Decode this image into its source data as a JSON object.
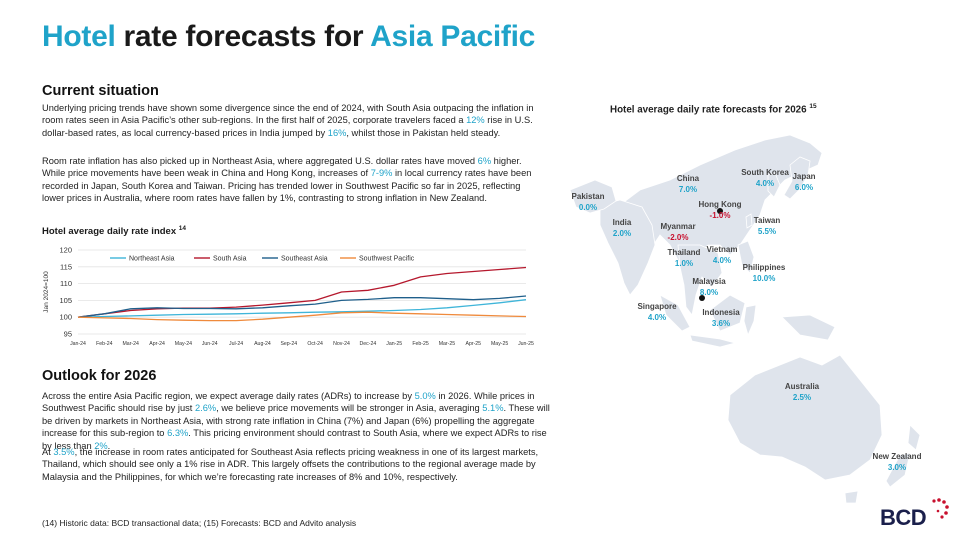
{
  "title": {
    "part1": "Hotel",
    "part2": " rate forecasts for ",
    "part3": "Asia Pacific"
  },
  "current": {
    "heading": "Current situation",
    "p1": [
      {
        "t": "Underlying pricing trends have shown some divergence since the end of 2024, with South Asia outpacing the inflation in room rates seen in Asia Pacific’s other sub-regions. In the first half of 2025, corporate travelers faced a "
      },
      {
        "t": "12%",
        "a": true
      },
      {
        "t": " rise in U.S. dollar-based rates, as local currency-based prices in India jumped by "
      },
      {
        "t": "16%",
        "a": true
      },
      {
        "t": ", whilst those in Pakistan held steady."
      }
    ],
    "p2": [
      {
        "t": "Room rate inflation has also picked up in Northeast Asia, where aggregated U.S. dollar rates have moved "
      },
      {
        "t": "6%",
        "a": true
      },
      {
        "t": " higher. While price movements have been weak in China and Hong Kong, increases of "
      },
      {
        "t": "7-9%",
        "a": true
      },
      {
        "t": " in local currency rates have been recorded in Japan, South Korea and Taiwan. Pricing has trended lower in Southwest Pacific so far in 2025, reflecting lower prices in Australia, where room rates have fallen by 1%, contrasting to strong inflation in New Zealand."
      }
    ]
  },
  "chart_title": {
    "text": "Hotel average daily rate index",
    "sup": "14"
  },
  "chart_data": {
    "type": "line",
    "title": "Hotel average daily rate index",
    "ylabel": "Jan 2024=100",
    "ylim": [
      95,
      120
    ],
    "yticks": [
      95,
      100,
      105,
      110,
      115,
      120
    ],
    "grid": true,
    "legend": "top",
    "categories": [
      "Jan-24",
      "Feb-24",
      "Mar-24",
      "Apr-24",
      "May-24",
      "Jun-24",
      "Jul-24",
      "Aug-24",
      "Sep-24",
      "Oct-24",
      "Nov-24",
      "Dec-24",
      "Jan-25",
      "Feb-25",
      "Mar-25",
      "Apr-25",
      "May-25",
      "Jun-25"
    ],
    "series": [
      {
        "name": "Northeast Asia",
        "color": "#3fb5d9",
        "values": [
          100,
          100.2,
          100.4,
          100.6,
          100.8,
          100.9,
          101.0,
          101.2,
          101.3,
          101.5,
          101.6,
          101.8,
          102.0,
          102.3,
          102.8,
          103.5,
          104.3,
          105.2
        ]
      },
      {
        "name": "South Asia",
        "color": "#b5182d",
        "values": [
          100,
          101.0,
          102.0,
          102.5,
          102.7,
          102.7,
          103.0,
          103.6,
          104.3,
          105.0,
          107.5,
          108.0,
          109.5,
          112.0,
          113.0,
          113.6,
          114.2,
          114.8
        ]
      },
      {
        "name": "Southeast Asia",
        "color": "#1f5f8b",
        "values": [
          100,
          101.0,
          102.5,
          102.8,
          102.6,
          102.6,
          102.5,
          102.8,
          103.4,
          103.9,
          105.0,
          105.3,
          105.8,
          105.8,
          105.5,
          105.2,
          105.6,
          106.3
        ]
      },
      {
        "name": "Southwest Pacific",
        "color": "#ef8a3c",
        "values": [
          100,
          99.8,
          99.6,
          99.3,
          99.1,
          99.0,
          99.0,
          99.4,
          100.0,
          100.6,
          101.3,
          101.5,
          101.2,
          101.0,
          100.8,
          100.6,
          100.4,
          100.2
        ]
      }
    ]
  },
  "outlook": {
    "heading": "Outlook for 2026",
    "p1": [
      {
        "t": "Across the entire Asia Pacific region, we expect average daily rates (ADRs) to increase by "
      },
      {
        "t": "5.0%",
        "a": true
      },
      {
        "t": " in 2026. While prices in Southwest Pacific should rise by just "
      },
      {
        "t": "2.6%",
        "a": true
      },
      {
        "t": ", we believe price movements will be stronger in Asia, averaging "
      },
      {
        "t": "5.1%",
        "a": true
      },
      {
        "t": ". These will be driven by markets in Northeast Asia, with strong rate inflation in China (7%) and Japan (6%) propelling the aggregate increase for this sub-region to "
      },
      {
        "t": "6.3%",
        "a": true
      },
      {
        "t": ". This pricing environment should contrast to South Asia, where we expect ADRs to rise by less than "
      },
      {
        "t": "2%",
        "a": true
      },
      {
        "t": "."
      }
    ],
    "p2": [
      {
        "t": "At "
      },
      {
        "t": "3.5%",
        "a": true
      },
      {
        "t": ", the increase in room rates anticipated for Southeast Asia reflects pricing weakness in one of its largest markets, Thailand, which should see only a 1% rise in ADR. This largely offsets the contributions to the regional average made by Malaysia and the Philippines, for which we’re forecasting rate increases of 8% and 10%, respectively."
      }
    ]
  },
  "footnote": "(14) Historic data: BCD transactional data; (15) Forecasts: BCD and Advito analysis",
  "map": {
    "title": "Hotel average daily rate forecasts for 2026",
    "sup": "15",
    "countries": [
      {
        "name": "Pakistan",
        "value": "0.0%",
        "neg": false
      },
      {
        "name": "India",
        "value": "2.0%",
        "neg": false
      },
      {
        "name": "China",
        "value": "7.0%",
        "neg": false
      },
      {
        "name": "South Korea",
        "value": "4.0%",
        "neg": false
      },
      {
        "name": "Japan",
        "value": "6.0%",
        "neg": false
      },
      {
        "name": "Hong Kong",
        "value": "-1.0%",
        "neg": true
      },
      {
        "name": "Taiwan",
        "value": "5.5%",
        "neg": false
      },
      {
        "name": "Myanmar",
        "value": "-2.0%",
        "neg": true
      },
      {
        "name": "Thailand",
        "value": "1.0%",
        "neg": false
      },
      {
        "name": "Vietnam",
        "value": "4.0%",
        "neg": false
      },
      {
        "name": "Philippines",
        "value": "10.0%",
        "neg": false
      },
      {
        "name": "Malaysia",
        "value": "8.0%",
        "neg": false
      },
      {
        "name": "Singapore",
        "value": "4.0%",
        "neg": false
      },
      {
        "name": "Indonesia",
        "value": "3.6%",
        "neg": false
      },
      {
        "name": "Australia",
        "value": "2.5%",
        "neg": false
      },
      {
        "name": "New Zealand",
        "value": "3.0%",
        "neg": false
      }
    ]
  },
  "logo": "BCD",
  "colors": {
    "accent": "#1fa3c9",
    "negative": "#c8102e",
    "land": "#dfe4ec",
    "logo_dark": "#1a1f4b",
    "logo_dots": "#c8102e"
  }
}
